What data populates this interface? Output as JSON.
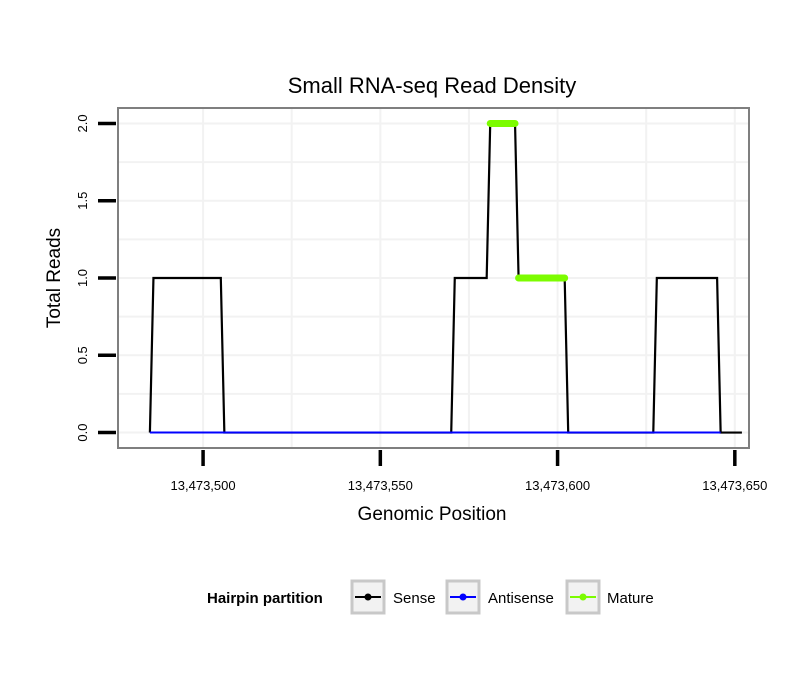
{
  "chart_data": {
    "type": "line",
    "title": "Small RNA-seq Read Density",
    "xlabel": "Genomic Position",
    "ylabel": "Total Reads",
    "xlim": [
      13473476,
      13473654
    ],
    "ylim": [
      -0.1,
      2.1
    ],
    "x_ticks": [
      13473500,
      13473550,
      13473600,
      13473650
    ],
    "x_tick_labels": [
      "13,473,500",
      "13,473,550",
      "13,473,600",
      "13,473,650"
    ],
    "y_ticks": [
      0,
      0.5,
      1,
      1.5,
      2
    ],
    "y_tick_labels": [
      "0.0",
      "0.5",
      "1.0",
      "1.5",
      "2.0"
    ],
    "grid": true,
    "legend": {
      "title": "Hairpin partition",
      "position": "bottom",
      "entries": [
        {
          "label": "Sense",
          "color": "#000000"
        },
        {
          "label": "Antisense",
          "color": "#0000ff"
        },
        {
          "label": "Mature",
          "color": "#7cfc00"
        }
      ]
    },
    "series": [
      {
        "name": "Sense",
        "color": "#000000",
        "points": [
          [
            13473485,
            0
          ],
          [
            13473486,
            1
          ],
          [
            13473505,
            1
          ],
          [
            13473506,
            0
          ],
          [
            13473570,
            0
          ],
          [
            13473571,
            1
          ],
          [
            13473580,
            1
          ],
          [
            13473581,
            2
          ],
          [
            13473588,
            2
          ],
          [
            13473589,
            1
          ],
          [
            13473602,
            1
          ],
          [
            13473603,
            0
          ],
          [
            13473627,
            0
          ],
          [
            13473628,
            1
          ],
          [
            13473645,
            1
          ],
          [
            13473646,
            0
          ],
          [
            13473652,
            0
          ]
        ]
      },
      {
        "name": "Antisense",
        "color": "#0000ff",
        "points": [
          [
            13473485,
            0
          ],
          [
            13473646,
            0
          ]
        ]
      },
      {
        "name": "Mature",
        "color": "#7cfc00",
        "segments": [
          {
            "x": [
              13473581,
              13473588
            ],
            "y": 2
          },
          {
            "x": [
              13473589,
              13473602
            ],
            "y": 1
          }
        ]
      }
    ]
  }
}
